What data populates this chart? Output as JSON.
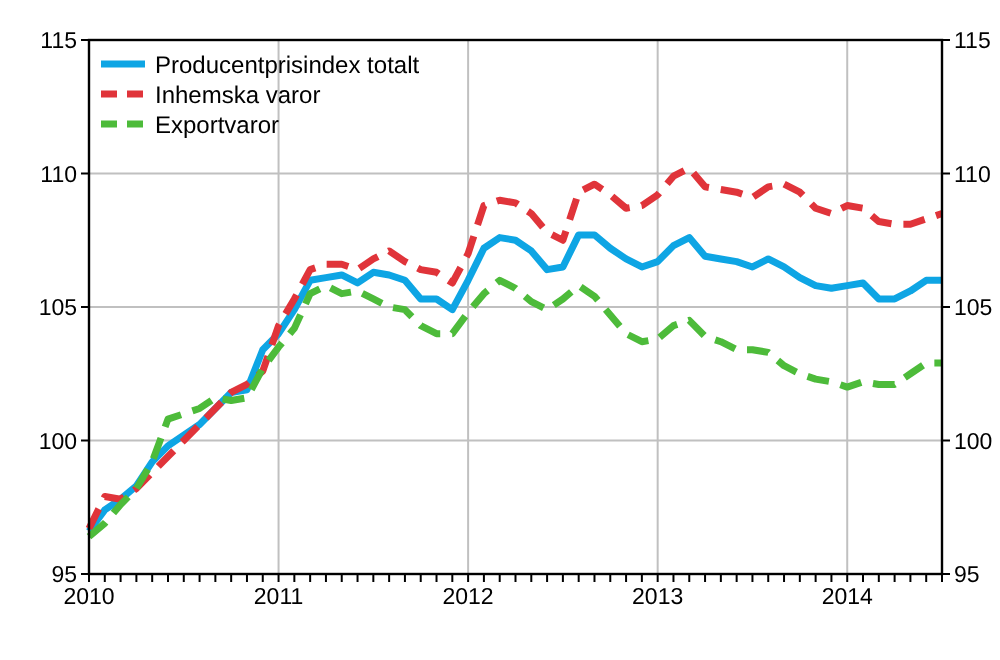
{
  "chart_data": {
    "type": "line",
    "legend": "top left",
    "grid": true,
    "x": [
      "2010-01",
      "2010-02",
      "2010-03",
      "2010-04",
      "2010-05",
      "2010-06",
      "2010-07",
      "2010-08",
      "2010-09",
      "2010-10",
      "2010-11",
      "2010-12",
      "2011-01",
      "2011-02",
      "2011-03",
      "2011-04",
      "2011-05",
      "2011-06",
      "2011-07",
      "2011-08",
      "2011-09",
      "2011-10",
      "2011-11",
      "2011-12",
      "2012-01",
      "2012-02",
      "2012-03",
      "2012-04",
      "2012-05",
      "2012-06",
      "2012-07",
      "2012-08",
      "2012-09",
      "2012-10",
      "2012-11",
      "2012-12",
      "2013-01",
      "2013-02",
      "2013-03",
      "2013-04",
      "2013-05",
      "2013-06",
      "2013-07",
      "2013-08",
      "2013-09",
      "2013-10",
      "2013-11",
      "2013-12",
      "2014-01",
      "2014-02",
      "2014-03",
      "2014-04",
      "2014-05",
      "2014-06",
      "2014-07"
    ],
    "series": [
      {
        "name": "Producentprisindex totalt",
        "color": "#0ea5e4",
        "line_style": "solid",
        "values": [
          96.6,
          97.4,
          97.8,
          98.3,
          99.2,
          99.8,
          100.2,
          100.6,
          101.2,
          101.8,
          101.9,
          103.4,
          104.0,
          104.9,
          106.0,
          106.1,
          106.2,
          105.9,
          106.3,
          106.2,
          106.0,
          105.3,
          105.3,
          104.9,
          106.0,
          107.2,
          107.6,
          107.5,
          107.1,
          106.4,
          106.5,
          107.7,
          107.7,
          107.2,
          106.8,
          106.5,
          106.7,
          107.3,
          107.6,
          106.9,
          106.8,
          106.7,
          106.5,
          106.8,
          106.5,
          106.1,
          105.8,
          105.7,
          105.8,
          105.9,
          105.3,
          105.3,
          105.6,
          106.0,
          106.0
        ]
      },
      {
        "name": "Inhemska varor",
        "color": "#e0343a",
        "line_style": "dashed",
        "values": [
          96.7,
          97.9,
          97.8,
          98.2,
          98.8,
          99.4,
          100.0,
          100.6,
          101.2,
          101.8,
          102.1,
          102.6,
          104.3,
          105.3,
          106.4,
          106.6,
          106.6,
          106.4,
          106.8,
          107.1,
          106.7,
          106.4,
          106.3,
          105.9,
          107.0,
          108.8,
          109.0,
          108.9,
          108.5,
          107.8,
          107.5,
          109.3,
          109.6,
          109.2,
          108.7,
          108.8,
          109.2,
          109.9,
          110.2,
          109.5,
          109.4,
          109.3,
          109.1,
          109.5,
          109.6,
          109.3,
          108.7,
          108.5,
          108.8,
          108.7,
          108.2,
          108.1,
          108.1,
          108.3,
          108.5
        ]
      },
      {
        "name": "Exportvaror",
        "color": "#4dbb3a",
        "line_style": "dashed",
        "values": [
          96.4,
          96.9,
          97.6,
          98.2,
          99.2,
          100.8,
          101.0,
          101.2,
          101.6,
          101.5,
          101.6,
          102.7,
          103.5,
          104.2,
          105.5,
          105.8,
          105.5,
          105.6,
          105.3,
          105.0,
          104.9,
          104.3,
          104.0,
          104.0,
          104.8,
          105.5,
          106.0,
          105.7,
          105.2,
          104.9,
          105.3,
          105.8,
          105.4,
          104.7,
          104.0,
          103.7,
          103.8,
          104.3,
          104.5,
          103.9,
          103.7,
          103.4,
          103.4,
          103.3,
          102.8,
          102.5,
          102.3,
          102.2,
          102.0,
          102.2,
          102.1,
          102.1,
          102.5,
          102.9,
          102.9
        ]
      }
    ],
    "xlim": [
      "2010-01",
      "2014-07"
    ],
    "xticks": [
      {
        "value": "2010-01",
        "label": "2010"
      },
      {
        "value": "2010-02",
        "label": null
      },
      {
        "value": "2010-03",
        "label": null
      },
      {
        "value": "2010-04",
        "label": null
      },
      {
        "value": "2010-05",
        "label": null
      },
      {
        "value": "2010-06",
        "label": null
      },
      {
        "value": "2010-07",
        "label": null
      },
      {
        "value": "2010-08",
        "label": null
      },
      {
        "value": "2010-09",
        "label": null
      },
      {
        "value": "2010-10",
        "label": null
      },
      {
        "value": "2010-11",
        "label": null
      },
      {
        "value": "2010-12",
        "label": null
      },
      {
        "value": "2011-01",
        "label": "2011"
      },
      {
        "value": "2011-02",
        "label": null
      },
      {
        "value": "2011-03",
        "label": null
      },
      {
        "value": "2011-04",
        "label": null
      },
      {
        "value": "2011-05",
        "label": null
      },
      {
        "value": "2011-06",
        "label": null
      },
      {
        "value": "2011-07",
        "label": null
      },
      {
        "value": "2011-08",
        "label": null
      },
      {
        "value": "2011-09",
        "label": null
      },
      {
        "value": "2011-10",
        "label": null
      },
      {
        "value": "2011-11",
        "label": null
      },
      {
        "value": "2011-12",
        "label": null
      },
      {
        "value": "2012-01",
        "label": "2012"
      },
      {
        "value": "2012-02",
        "label": null
      },
      {
        "value": "2012-03",
        "label": null
      },
      {
        "value": "2012-04",
        "label": null
      },
      {
        "value": "2012-05",
        "label": null
      },
      {
        "value": "2012-06",
        "label": null
      },
      {
        "value": "2012-07",
        "label": null
      },
      {
        "value": "2012-08",
        "label": null
      },
      {
        "value": "2012-09",
        "label": null
      },
      {
        "value": "2012-10",
        "label": null
      },
      {
        "value": "2012-11",
        "label": null
      },
      {
        "value": "2012-12",
        "label": null
      },
      {
        "value": "2013-01",
        "label": "2013"
      },
      {
        "value": "2013-02",
        "label": null
      },
      {
        "value": "2013-03",
        "label": null
      },
      {
        "value": "2013-04",
        "label": null
      },
      {
        "value": "2013-05",
        "label": null
      },
      {
        "value": "2013-06",
        "label": null
      },
      {
        "value": "2013-07",
        "label": null
      },
      {
        "value": "2013-08",
        "label": null
      },
      {
        "value": "2013-09",
        "label": null
      },
      {
        "value": "2013-10",
        "label": null
      },
      {
        "value": "2013-11",
        "label": null
      },
      {
        "value": "2013-12",
        "label": null
      },
      {
        "value": "2014-01",
        "label": "2014"
      },
      {
        "value": "2014-02",
        "label": null
      },
      {
        "value": "2014-03",
        "label": null
      },
      {
        "value": "2014-04",
        "label": null
      },
      {
        "value": "2014-05",
        "label": null
      },
      {
        "value": "2014-06",
        "label": null
      },
      {
        "value": "2014-07",
        "label": null
      }
    ],
    "ylim": [
      95,
      115
    ],
    "yticks": [
      95,
      100,
      105,
      110,
      115
    ],
    "y2lim": [
      95,
      115
    ],
    "y2ticks": [
      95,
      100,
      105,
      110,
      115
    ]
  }
}
